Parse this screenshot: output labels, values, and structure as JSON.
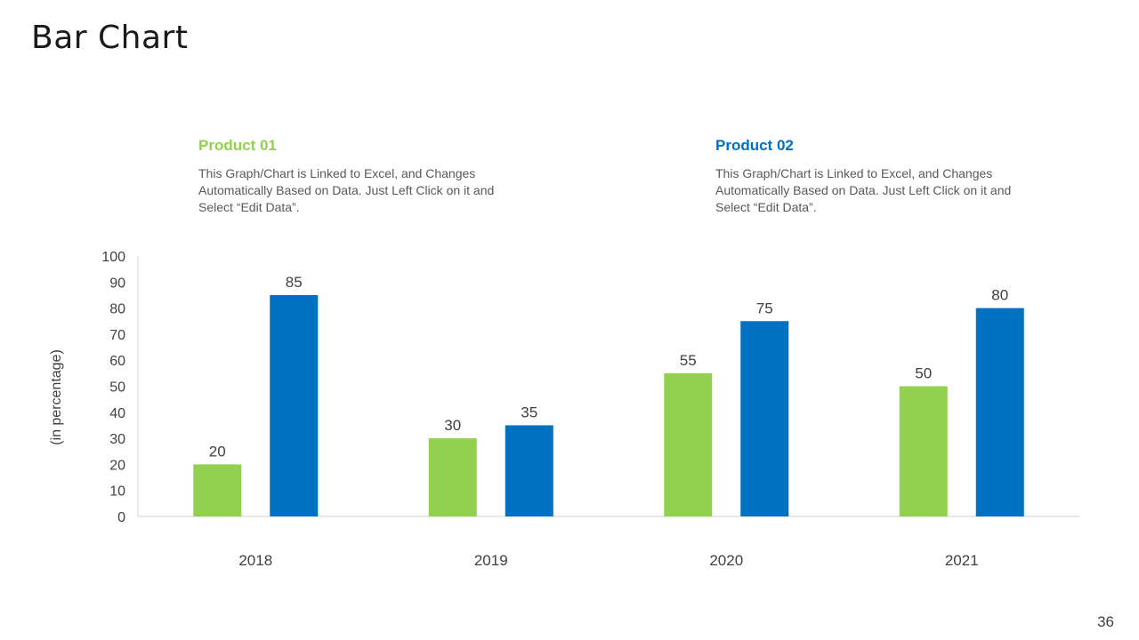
{
  "slide": {
    "title": "Bar Chart",
    "page_number": "36"
  },
  "legend": [
    {
      "name": "Product 01",
      "description": "This Graph/Chart is Linked to Excel, and Changes Automatically Based on Data. Just Left Click on it and Select “Edit Data”.",
      "color": "#92D050"
    },
    {
      "name": "Product 02",
      "description": "This Graph/Chart is Linked to Excel, and Changes Automatically Based on Data. Just Left Click on it and Select “Edit Data”.",
      "color": "#0070C0"
    }
  ],
  "chart_data": {
    "type": "bar",
    "title": "",
    "xlabel": "",
    "ylabel": "(in percentage)",
    "categories": [
      "2018",
      "2019",
      "2020",
      "2021"
    ],
    "series": [
      {
        "name": "Product 01",
        "values": [
          20,
          30,
          55,
          50
        ],
        "color": "#92D050"
      },
      {
        "name": "Product 02",
        "values": [
          85,
          35,
          75,
          80
        ],
        "color": "#0070C0"
      }
    ],
    "ylim": [
      0,
      100
    ],
    "yticks": [
      0,
      10,
      20,
      30,
      40,
      50,
      60,
      70,
      80,
      90,
      100
    ],
    "grid": false,
    "data_labels": true
  }
}
